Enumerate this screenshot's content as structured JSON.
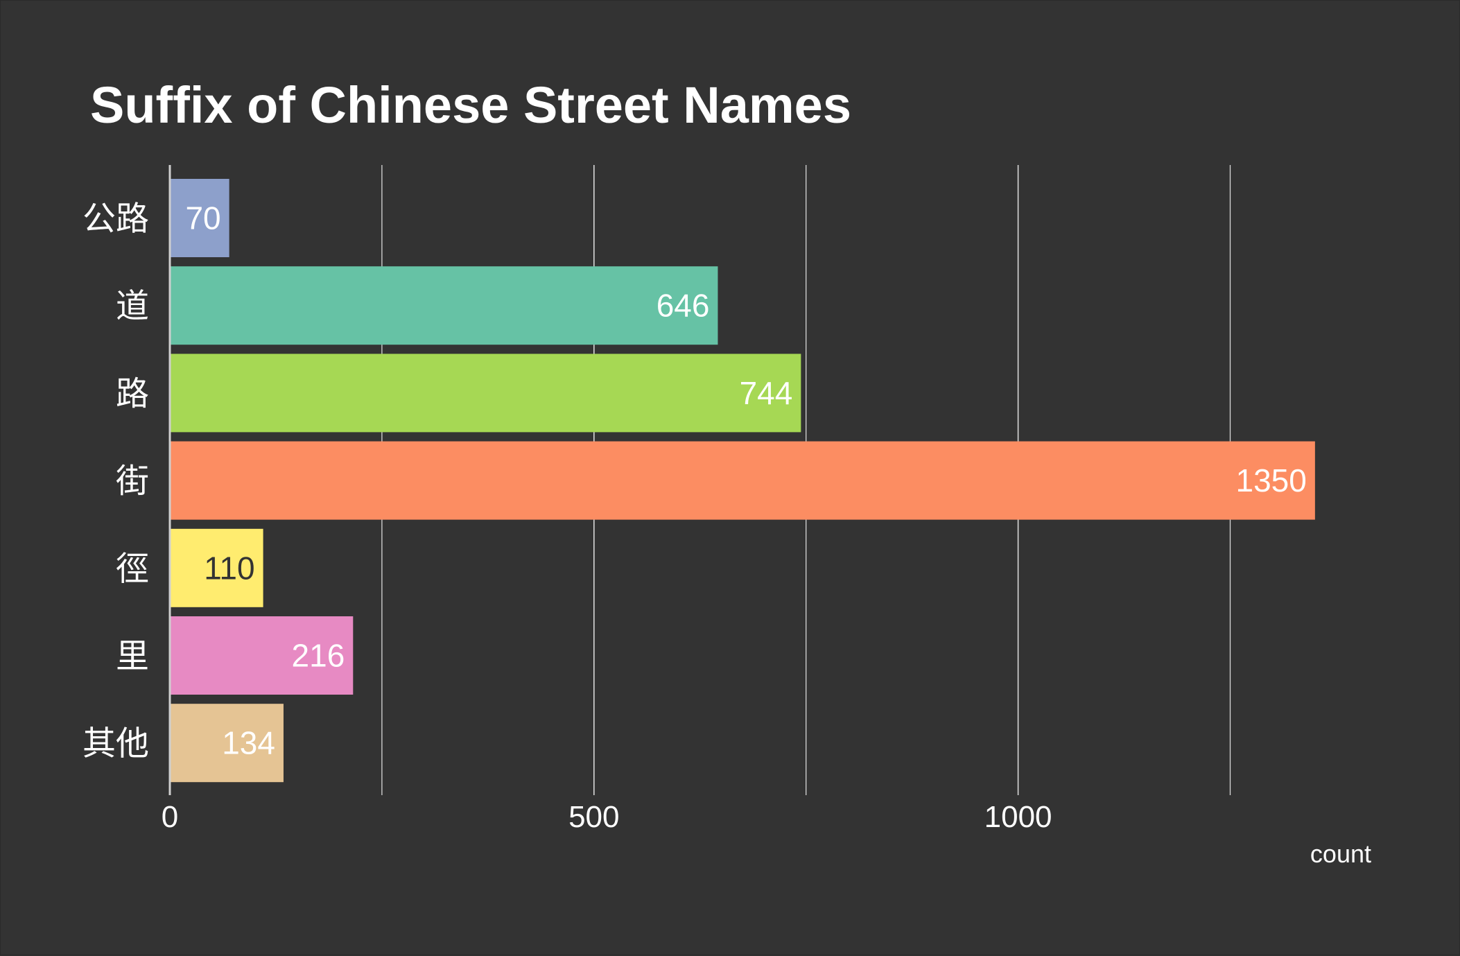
{
  "chart_data": {
    "type": "bar",
    "orientation": "horizontal",
    "title": "Suffix of Chinese Street Names",
    "xlabel": "count",
    "ylabel": "",
    "categories": [
      "公路",
      "道",
      "路",
      "街",
      "徑",
      "里",
      "其他"
    ],
    "values": [
      70,
      646,
      744,
      1350,
      110,
      216,
      134
    ],
    "colors": [
      "#8da0cb",
      "#66c2a5",
      "#a6d854",
      "#fc8d62",
      "#ffec6f",
      "#e78ac3",
      "#e5c494"
    ],
    "value_label_colors": [
      "#ffffff",
      "#ffffff",
      "#ffffff",
      "#ffffff",
      "#333333",
      "#ffffff",
      "#ffffff"
    ],
    "xlim": [
      0,
      1450
    ],
    "xticks": [
      0,
      500,
      1000
    ],
    "xtick_labels": [
      "0",
      "500",
      "1000"
    ],
    "minor_gridlines": [
      250,
      750,
      1250
    ],
    "background": "#333333",
    "gridline_color": "#d9d9d9",
    "text_color": "#ffffff",
    "grid": true,
    "legend": "none"
  }
}
